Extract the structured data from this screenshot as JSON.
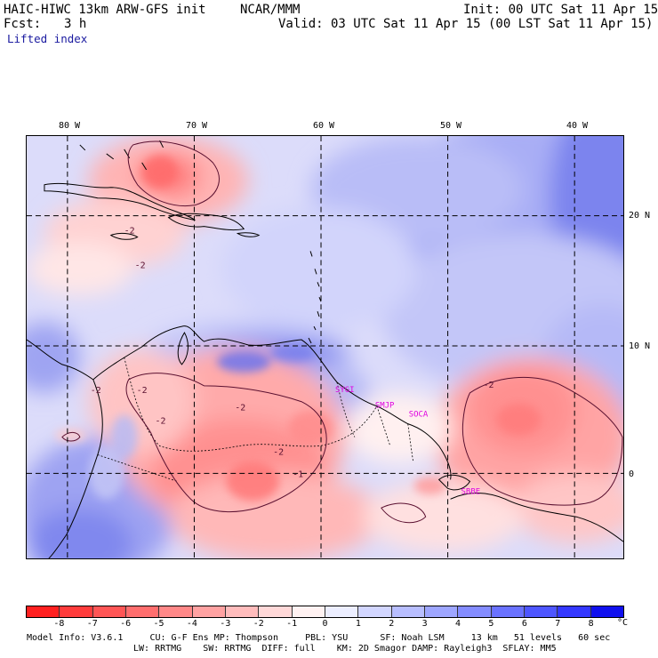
{
  "header": {
    "model": "HAIC-HIWC 13km ARW-GFS init",
    "center": "NCAR/MMM",
    "init": "Init: 00 UTC Sat 11 Apr 15",
    "fcst_label": "Fcst:",
    "fcst_value": "3 h",
    "valid": "Valid: 03 UTC Sat 11 Apr 15 (00 LST Sat 11 Apr 15)",
    "field": "Lifted index"
  },
  "map": {
    "lon_labels": [
      "80 W",
      "70 W",
      "60 W",
      "50 W",
      "40 W"
    ],
    "lat_labels": [
      "20 N",
      "10 N",
      "0"
    ],
    "lon_values": [
      -80,
      -70,
      -60,
      -50,
      -40
    ],
    "lat_values": [
      20,
      10,
      0
    ],
    "lon_range": [
      -83.2,
      -35.6
    ],
    "lat_range": [
      26.3,
      -6.5
    ],
    "contour_labels": [
      "-2",
      "-2",
      "-2",
      "-2",
      "-2",
      "-2",
      "-2",
      "-1",
      "-2"
    ],
    "stations": [
      "SYGI",
      "SMJP",
      "SOCA",
      "SBBE"
    ],
    "station_color": "#e000e0"
  },
  "colorbar": {
    "labels": [
      "-8",
      "-7",
      "-6",
      "-5",
      "-4",
      "-3",
      "-2",
      "-1",
      "0",
      "1",
      "2",
      "3",
      "4",
      "5",
      "6",
      "7",
      "8"
    ],
    "unit": "°C",
    "colors": [
      "#ff2020",
      "#ff3c3c",
      "#ff5656",
      "#ff6e6e",
      "#ff8888",
      "#ffa2a2",
      "#ffbcbc",
      "#ffd8d8",
      "#fff2f2",
      "#eceeff",
      "#d2d6ff",
      "#b8beff",
      "#9ea6ff",
      "#848cff",
      "#6a72ff",
      "#4e56ff",
      "#3438ff",
      "#1010ee"
    ]
  },
  "footer": {
    "line1": "Model Info: V3.6.1     CU: G-F Ens MP: Thompson     PBL: YSU      SF: Noah LSM     13 km   51 levels   60 sec",
    "line2": "LW: RRTMG    SW: RRTMG  DIFF: full    KM: 2D Smagor DAMP: Rayleigh3  SFLAY: MM5"
  }
}
